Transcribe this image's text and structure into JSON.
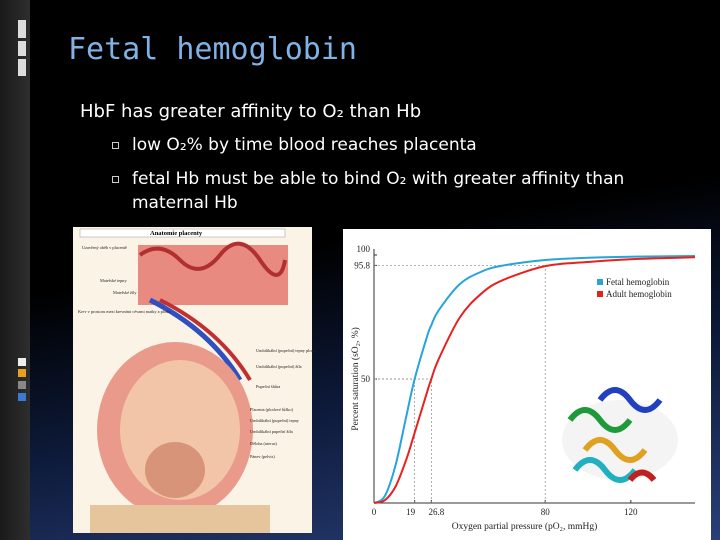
{
  "slide": {
    "title": "Fetal hemoglobin",
    "bullets": [
      {
        "text": "HbF has greater affinity to O₂ than Hb",
        "subbullets": [
          "low O₂% by time blood reaches placenta",
          "fetal Hb must be able to bind O₂ with greater affinity than maternal Hb"
        ]
      }
    ]
  },
  "illustration": {
    "title": "Anatomie placenty",
    "labels": [
      "Uzavřený oběh v placentě",
      "Mateřské tepny",
      "Mateřské žíly",
      "Krev v prostoru mezi krevními cévami matky a plodu",
      "Umbilikální (pupeční) tepny plodu",
      "Umbilikální (pupeční) žíla",
      "Pupeční šňůra",
      "Placenta (plodové lůžko)",
      "Umbilikální (pupeční) tepny",
      "Umbilikální pupeční žíla",
      "Děloha (uterus)",
      "Pánev (pelvis)"
    ]
  },
  "chart_data": {
    "type": "line",
    "x_label": "Oxygen partial pressure (pO₂, mmHg)",
    "y_label": "Percent saturation (sO₂, %)",
    "xlim": [
      0,
      150
    ],
    "ylim": [
      0,
      100
    ],
    "xticks": [
      0,
      19,
      26.8,
      80,
      120
    ],
    "yticks": [
      50,
      95.8,
      100
    ],
    "legend": "upper right",
    "x": [
      0,
      5,
      10,
      15,
      19,
      25,
      26.8,
      30,
      40,
      50,
      60,
      80,
      100,
      120,
      150
    ],
    "series": [
      {
        "name": "Fetal hemoglobin",
        "color": "#27a4d8",
        "values": [
          0,
          2.7,
          15.0,
          34.6,
          50,
          67.7,
          71.7,
          77.4,
          88.2,
          93.2,
          95.7,
          98.0,
          98.9,
          99.3,
          99.6
        ]
      },
      {
        "name": "Adult hemoglobin",
        "color": "#e8211f",
        "values": [
          0,
          1.1,
          6.5,
          17.3,
          28.3,
          45.3,
          50,
          57.6,
          74.7,
          84.3,
          89.8,
          95.5,
          97.2,
          98.3,
          99.1
        ]
      }
    ]
  }
}
